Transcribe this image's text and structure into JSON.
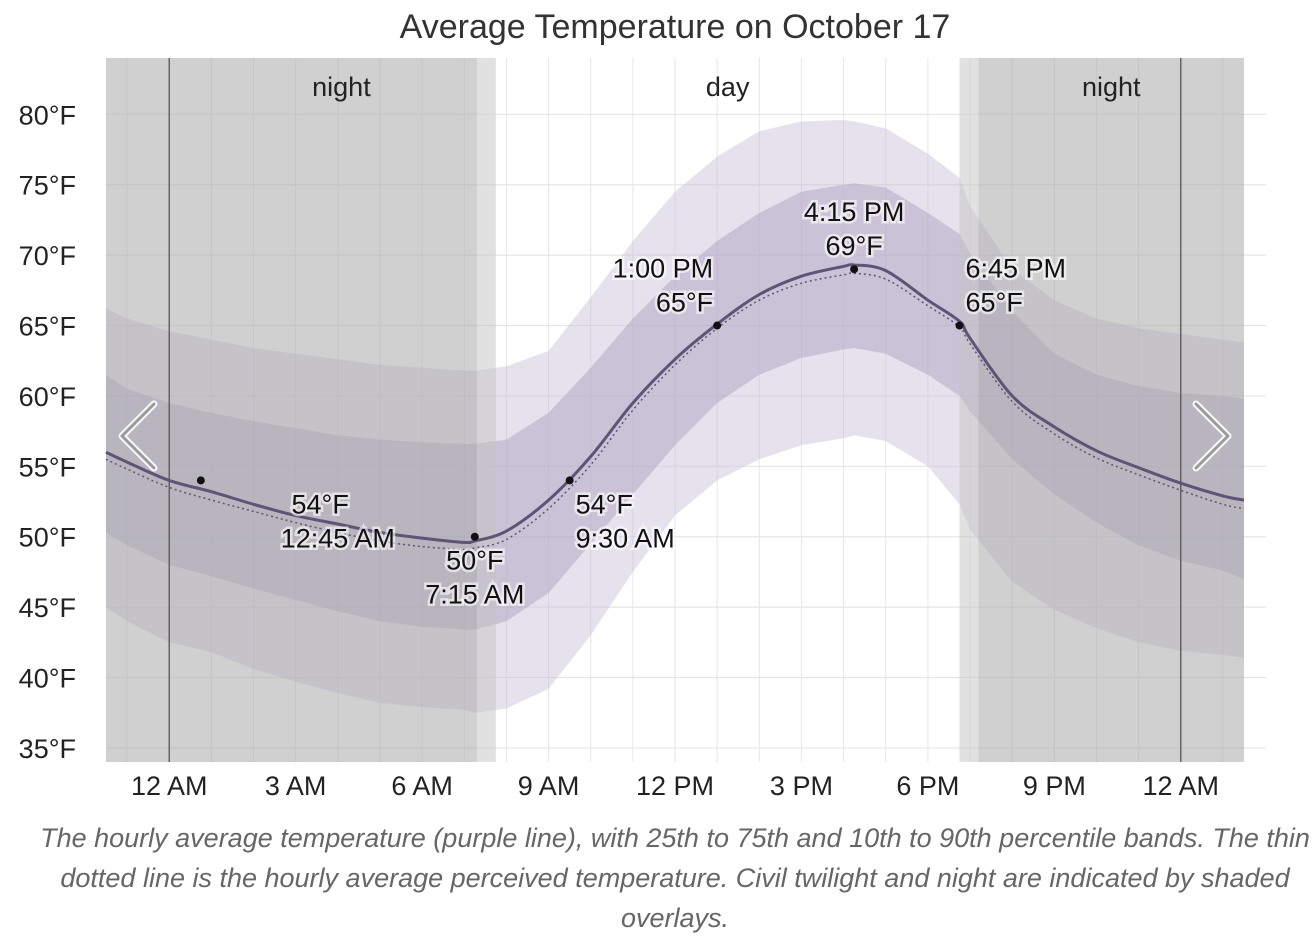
{
  "title": "Average Temperature on October 17",
  "caption": "The hourly average temperature (purple line), with 25th to 75th and 10th to 90th percentile bands. The thin dotted line is the hourly average perceived temperature. Civil twilight and night are indicated by shaded overlays.",
  "period_labels": [
    "night",
    "day",
    "night"
  ],
  "nav": {
    "prev": "previous-arrow",
    "next": "next-arrow"
  },
  "colors": {
    "line": "#5e5475",
    "band_10_90": "#c7bfd7",
    "band_25_75": "#a89dbc",
    "night": "#a9a9a9",
    "twilight": "#c4c4c4",
    "grid": "#e6e6e6",
    "midnight_line": "#555555"
  },
  "chart_data": {
    "type": "line",
    "title": "Average Temperature on October 17",
    "xlabel": "",
    "ylabel": "",
    "x_domain_hours": [
      -1.5,
      25.5
    ],
    "ylim": [
      34,
      84
    ],
    "x_ticks": [
      {
        "hour": 0,
        "label": "12 AM"
      },
      {
        "hour": 3,
        "label": "3 AM"
      },
      {
        "hour": 6,
        "label": "6 AM"
      },
      {
        "hour": 9,
        "label": "9 AM"
      },
      {
        "hour": 12,
        "label": "12 PM"
      },
      {
        "hour": 15,
        "label": "3 PM"
      },
      {
        "hour": 18,
        "label": "6 PM"
      },
      {
        "hour": 21,
        "label": "9 PM"
      },
      {
        "hour": 24,
        "label": "12 AM"
      }
    ],
    "y_ticks": [
      {
        "value": 35,
        "label": "35°F"
      },
      {
        "value": 40,
        "label": "40°F"
      },
      {
        "value": 45,
        "label": "45°F"
      },
      {
        "value": 50,
        "label": "50°F"
      },
      {
        "value": 55,
        "label": "55°F"
      },
      {
        "value": 60,
        "label": "60°F"
      },
      {
        "value": 65,
        "label": "65°F"
      },
      {
        "value": 70,
        "label": "70°F"
      },
      {
        "value": 75,
        "label": "75°F"
      },
      {
        "value": 80,
        "label": "80°F"
      }
    ],
    "shading": [
      {
        "kind": "night",
        "start": -1.5,
        "end": 7.3
      },
      {
        "kind": "twilight",
        "start": 7.3,
        "end": 7.75
      },
      {
        "kind": "twilight",
        "start": 18.75,
        "end": 19.2
      },
      {
        "kind": "night",
        "start": 19.2,
        "end": 25.5
      }
    ],
    "hours": [
      -1.5,
      -1,
      0,
      1,
      2,
      3,
      4,
      5,
      6,
      7,
      7.25,
      8,
      9,
      10,
      11,
      12,
      13,
      14,
      15,
      16,
      16.25,
      17,
      18,
      18.75,
      19,
      20,
      21,
      22,
      23,
      24,
      25,
      25.5
    ],
    "series": [
      {
        "name": "average temperature",
        "values": [
          56.0,
          55.3,
          54.0,
          53.2,
          52.3,
          51.5,
          50.9,
          50.3,
          49.9,
          49.6,
          49.7,
          50.4,
          52.6,
          55.7,
          59.5,
          62.6,
          65.1,
          67.2,
          68.5,
          69.2,
          69.3,
          68.9,
          66.8,
          65.3,
          64.1,
          60.0,
          57.8,
          56.1,
          54.9,
          53.8,
          52.9,
          52.6
        ]
      },
      {
        "name": "perceived temperature",
        "values": [
          55.5,
          54.8,
          53.5,
          52.6,
          51.8,
          51.0,
          50.3,
          49.7,
          49.3,
          49.1,
          49.2,
          49.8,
          52.0,
          55.1,
          59.0,
          62.2,
          64.8,
          66.8,
          68.0,
          68.6,
          68.7,
          68.3,
          66.4,
          64.9,
          63.7,
          59.6,
          57.3,
          55.6,
          54.4,
          53.3,
          52.3,
          52.0
        ]
      }
    ],
    "bands": {
      "p10": [
        45.0,
        44.0,
        42.5,
        41.8,
        40.6,
        39.7,
        38.9,
        38.2,
        37.9,
        37.7,
        37.5,
        37.8,
        39.2,
        43.0,
        47.5,
        51.5,
        54.0,
        55.5,
        56.5,
        57.0,
        57.2,
        56.8,
        55.0,
        52.3,
        50.5,
        46.8,
        44.8,
        43.5,
        42.5,
        41.9,
        41.6,
        41.4
      ],
      "p25": [
        50.3,
        49.4,
        48.0,
        47.2,
        46.3,
        45.5,
        44.7,
        44.0,
        43.6,
        43.4,
        43.4,
        44.0,
        46.0,
        49.5,
        53.0,
        56.5,
        59.5,
        61.5,
        62.7,
        63.3,
        63.4,
        63.0,
        61.5,
        60.0,
        58.9,
        55.5,
        53.0,
        51.0,
        49.4,
        48.3,
        47.6,
        47.0
      ],
      "p75": [
        61.5,
        60.5,
        59.5,
        58.8,
        58.2,
        57.7,
        57.2,
        56.9,
        56.7,
        56.6,
        56.6,
        56.9,
        58.8,
        62.0,
        65.5,
        68.5,
        71.0,
        73.0,
        74.5,
        75.0,
        75.1,
        74.8,
        73.0,
        71.5,
        70.1,
        66.0,
        63.0,
        61.5,
        60.7,
        60.2,
        60.0,
        59.8
      ],
      "p90": [
        66.2,
        65.5,
        64.6,
        64.0,
        63.4,
        63.0,
        62.6,
        62.2,
        62.0,
        61.8,
        61.8,
        62.1,
        63.2,
        67.0,
        71.0,
        74.5,
        77.0,
        78.8,
        79.5,
        79.6,
        79.5,
        79.0,
        77.2,
        75.5,
        73.5,
        69.0,
        66.8,
        65.5,
        64.8,
        64.4,
        64.0,
        63.8
      ]
    },
    "annotations": [
      {
        "hour": 0.75,
        "value": 54,
        "temp_label": "54°F",
        "time_label": "12:45 AM",
        "placement": "below-left"
      },
      {
        "hour": 7.25,
        "value": 50,
        "temp_label": "50°F",
        "time_label": "7:15 AM",
        "placement": "below"
      },
      {
        "hour": 9.5,
        "value": 54,
        "temp_label": "54°F",
        "time_label": "9:30 AM",
        "placement": "below-right"
      },
      {
        "hour": 13.0,
        "value": 65,
        "temp_label": "65°F",
        "time_label": "1:00 PM",
        "placement": "above-left"
      },
      {
        "hour": 16.25,
        "value": 69,
        "temp_label": "69°F",
        "time_label": "4:15 PM",
        "placement": "above"
      },
      {
        "hour": 18.75,
        "value": 65,
        "temp_label": "65°F",
        "time_label": "6:45 PM",
        "placement": "above-right"
      }
    ],
    "grid": true,
    "legend": "none"
  }
}
